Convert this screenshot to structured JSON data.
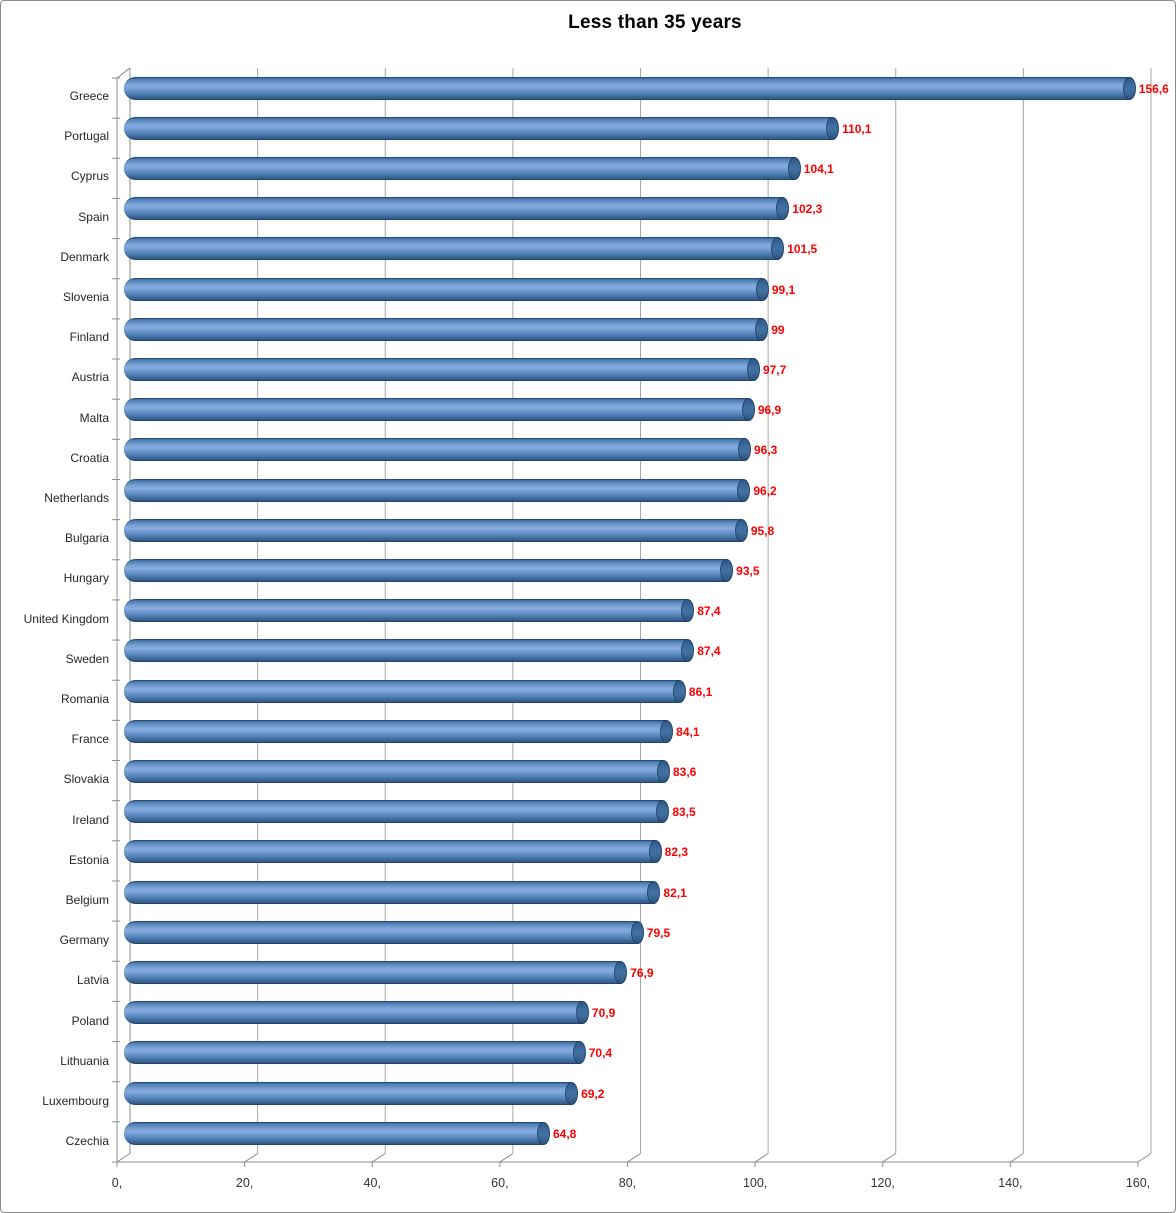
{
  "chart_data": {
    "type": "bar",
    "orientation": "horizontal",
    "title": "Less than 35 years",
    "categories": [
      "Greece",
      "Portugal",
      "Cyprus",
      "Spain",
      "Denmark",
      "Slovenia",
      "Finland",
      "Austria",
      "Malta",
      "Croatia",
      "Netherlands",
      "Bulgaria",
      "Hungary",
      "United Kingdom",
      "Sweden",
      "Romania",
      "France",
      "Slovakia",
      "Ireland",
      "Estonia",
      "Belgium",
      "Germany",
      "Latvia",
      "Poland",
      "Lithuania",
      "Luxembourg",
      "Czechia"
    ],
    "values": [
      156.6,
      110.1,
      104.1,
      102.3,
      101.5,
      99.1,
      99,
      97.7,
      96.9,
      96.3,
      96.2,
      95.8,
      93.5,
      87.4,
      87.4,
      86.1,
      84.1,
      83.6,
      83.5,
      82.3,
      82.1,
      79.5,
      76.9,
      70.9,
      70.4,
      69.2,
      64.8
    ],
    "value_labels": [
      "156,6",
      "110,1",
      "104,1",
      "102,3",
      "101,5",
      "99,1",
      "99",
      "97,7",
      "96,9",
      "96,3",
      "96,2",
      "95,8",
      "93,5",
      "87,4",
      "87,4",
      "86,1",
      "84,1",
      "83,6",
      "83,5",
      "82,3",
      "82,1",
      "79,5",
      "76,9",
      "70,9",
      "70,4",
      "69,2",
      "64,8"
    ],
    "x_ticks": [
      "0,",
      "20,",
      "40,",
      "60,",
      "80,",
      "100,",
      "120,",
      "140,",
      "160,"
    ],
    "xlim": [
      0,
      160
    ],
    "x_tick_step": 20,
    "grid": true,
    "legend": "none",
    "colors": {
      "bar": "#4F81BD",
      "bar_cap": "#35618F",
      "value_label": "#FF0000",
      "category_label": "#262626",
      "gridline": "#A6A6A6",
      "axis": "#8C8C8C",
      "title": "#000000",
      "background": "#FFFFFF"
    }
  }
}
